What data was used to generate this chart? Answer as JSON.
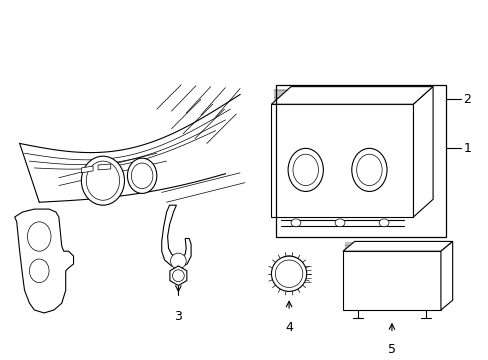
{
  "background_color": "#ffffff",
  "line_color": "#000000",
  "figsize": [
    4.89,
    3.6
  ],
  "dpi": 100,
  "lw": 0.8,
  "tlw": 0.5
}
